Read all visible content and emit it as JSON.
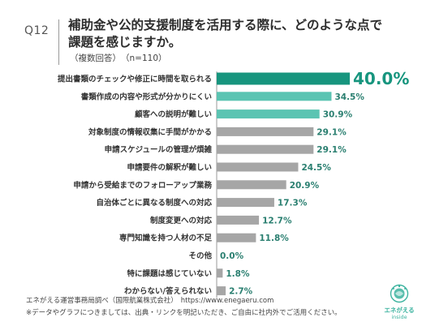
{
  "header": {
    "qnum": "Q12",
    "title_line1": "補助金や公的支援制度を活用する際に、どのような点で",
    "title_line2": "課題を感じますか。",
    "subtitle": "（複数回答）　（n=110）"
  },
  "colors": {
    "highlight": "#17957e",
    "accent": "#5bc4b2",
    "other": "#a6a6a6",
    "label_highlight": "#17957e",
    "label_other": "#2a7f70"
  },
  "chart_data": {
    "type": "bar",
    "orientation": "horizontal",
    "categories": [
      "提出書類のチェックや修正に時間を取られる",
      "書類作成の内容や形式が分かりにくい",
      "顧客への説明が難しい",
      "対象制度の情報収集に手間がかかる",
      "申請スケジュールの管理が煩雑",
      "申請要件の解釈が難しい",
      "申請から受給までのフォローアップ業務",
      "自治体ごとに異なる制度への対応",
      "制度変更への対応",
      "専門知識を持つ人材の不足",
      "その他",
      "特に課題は感じていない",
      "わからない/答えられない"
    ],
    "values": [
      40.0,
      34.5,
      30.9,
      29.1,
      29.1,
      24.5,
      20.9,
      17.3,
      12.7,
      11.8,
      0.0,
      1.8,
      2.7
    ],
    "value_labels": [
      "40.0%",
      "34.5%",
      "30.9%",
      "29.1%",
      "29.1%",
      "24.5%",
      "20.9%",
      "17.3%",
      "12.7%",
      "11.8%",
      "0.0%",
      "1.8%",
      "2.7%"
    ],
    "bar_colors": [
      "highlight",
      "accent",
      "accent",
      "other",
      "other",
      "other",
      "other",
      "other",
      "other",
      "other",
      "other",
      "other",
      "other"
    ],
    "xlim": [
      0,
      40
    ],
    "grid": false,
    "legend": "none"
  },
  "footer": {
    "source": "エネがえる運営事務局調べ（国際航業株式会社）",
    "url": "https://www.enegaeru.com",
    "note": "※データやグラフにつきましては、出典・リンクを明記いただき、ご自由に社内外でご活用ください。"
  },
  "logo": {
    "name": "エネがえる",
    "sub": "inside"
  }
}
